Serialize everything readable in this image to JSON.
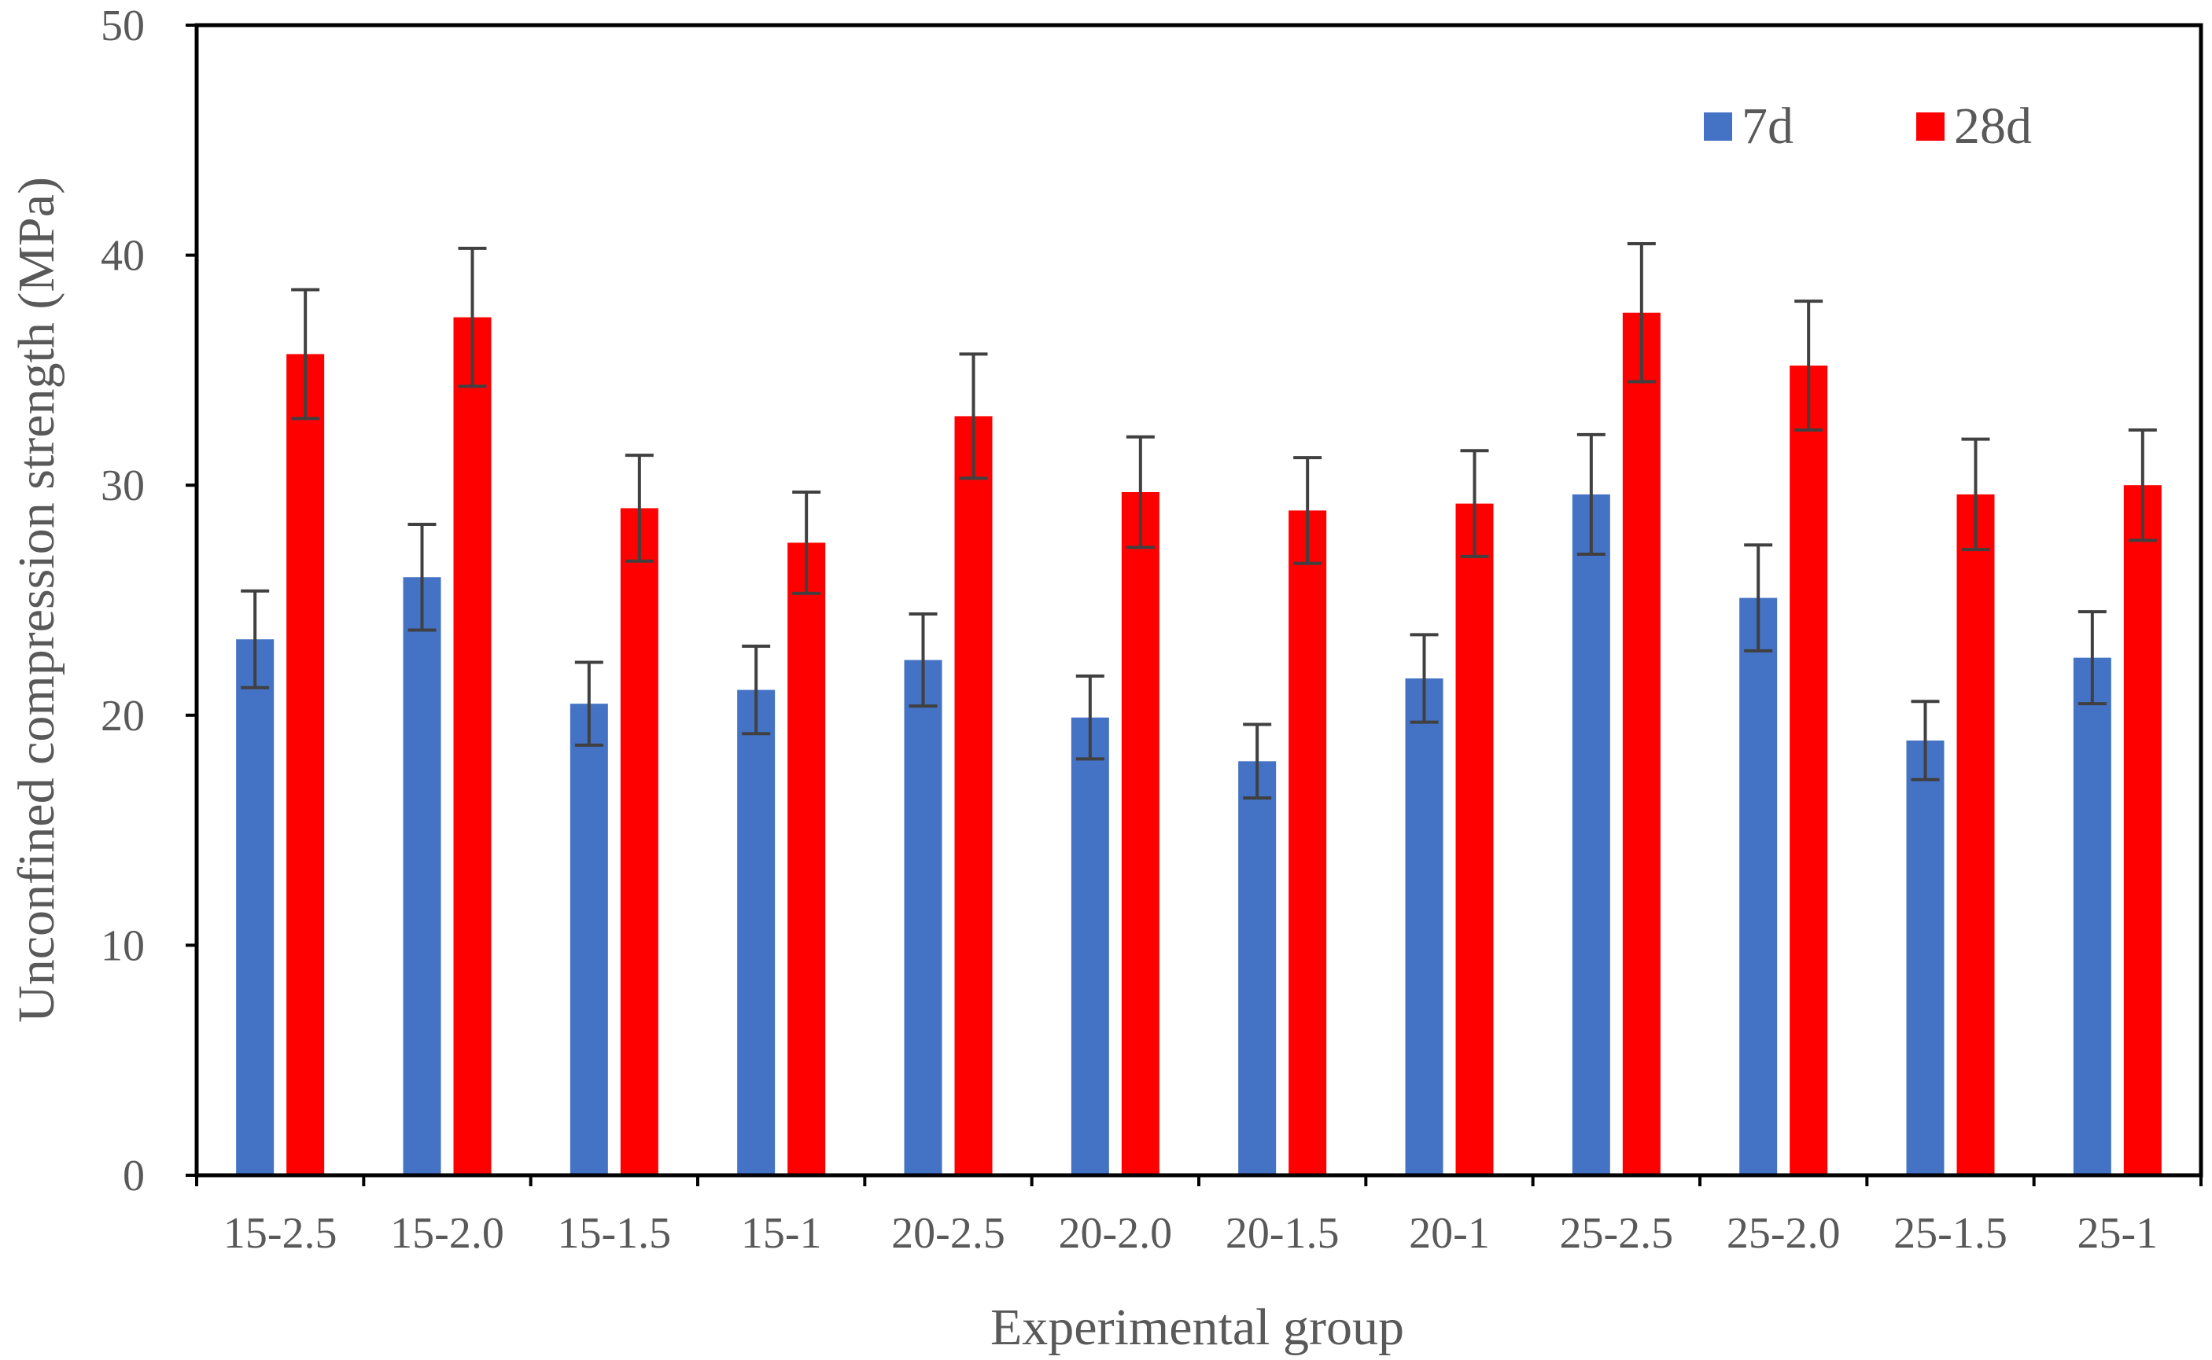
{
  "chart_data": {
    "type": "bar",
    "title": "",
    "xlabel": "Experimental group",
    "ylabel": "Unconfined compression strength (MPa)",
    "ylim": [
      0,
      50
    ],
    "yticks": [
      0,
      10,
      20,
      30,
      40,
      50
    ],
    "grid": false,
    "legend_position": "top-right",
    "categories": [
      "15-2.5",
      "15-2.0",
      "15-1.5",
      "15-1",
      "20-2.5",
      "20-2.0",
      "20-1.5",
      "20-1",
      "25-2.5",
      "25-2.0",
      "25-1.5",
      "25-1"
    ],
    "series": [
      {
        "name": "7d",
        "color": "#4472C4",
        "values": [
          23.3,
          26.0,
          20.5,
          21.1,
          22.4,
          19.9,
          18.0,
          21.6,
          29.6,
          25.1,
          18.9,
          22.5
        ],
        "errors": [
          2.1,
          2.3,
          1.8,
          1.9,
          2.0,
          1.8,
          1.6,
          1.9,
          2.6,
          2.3,
          1.7,
          2.0
        ]
      },
      {
        "name": "28d",
        "color": "#FF0000",
        "values": [
          35.7,
          37.3,
          29.0,
          27.5,
          33.0,
          29.7,
          28.9,
          29.2,
          37.5,
          35.2,
          29.6,
          30.0
        ],
        "errors": [
          2.8,
          3.0,
          2.3,
          2.2,
          2.7,
          2.4,
          2.3,
          2.3,
          3.0,
          2.8,
          2.4,
          2.4
        ]
      }
    ],
    "error_bar_color": "#404040"
  }
}
